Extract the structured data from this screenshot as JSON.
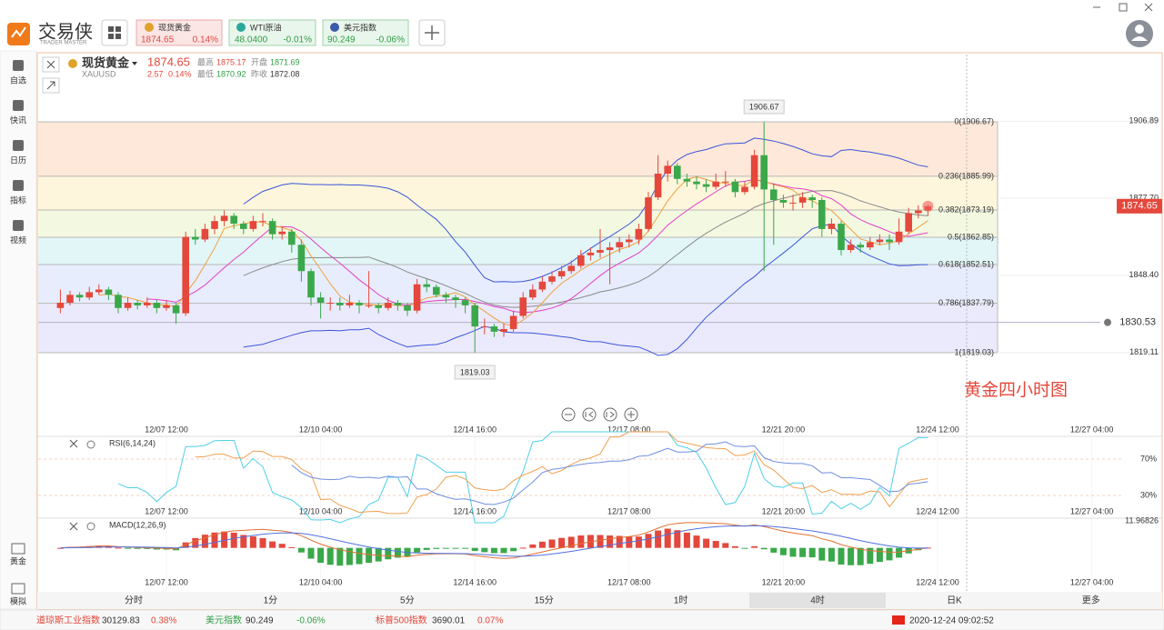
{
  "app": {
    "logo": "交易侠",
    "logo_sub": "TRADER MASTER"
  },
  "tabs": [
    {
      "name": "现货黄金",
      "price": "1874.65",
      "change": "0.14%"
    },
    {
      "name": "WTI原油",
      "price": "48.0400",
      "change": "-0.01%"
    },
    {
      "name": "美元指数",
      "price": "90.249",
      "change": "-0.06%"
    }
  ],
  "sidebar": [
    "自选",
    "快讯",
    "日历",
    "指标",
    "视频"
  ],
  "sidebar_bottom": [
    "黄金",
    "模拟"
  ],
  "quote": {
    "name": "现货黄金",
    "price": "1874.65",
    "symbol": "XAUUSD",
    "change": "2.57",
    "change_pct": "0.14%",
    "high_label": "最高",
    "high": "1875.17",
    "open_label": "开盘",
    "open": "1871.69",
    "low_label": "最低",
    "low": "1870.92",
    "prev_label": "昨收",
    "prev": "1872.08"
  },
  "chart_data": {
    "type": "candlestick",
    "categories": [
      null,
      null,
      null,
      null,
      null,
      null,
      null,
      null,
      null,
      null,
      null,
      "12/07 12:00",
      null,
      null,
      null,
      null,
      null,
      null,
      null,
      null,
      null,
      null,
      null,
      null,
      null,
      null,
      null,
      "12/10 04:00",
      null,
      null,
      null,
      null,
      null,
      null,
      null,
      null,
      null,
      null,
      null,
      null,
      null,
      null,
      null,
      "12/14 16:00",
      null,
      null,
      null,
      null,
      null,
      null,
      null,
      null,
      null,
      null,
      null,
      null,
      null,
      null,
      null,
      "12/17 08:00",
      null,
      null,
      null,
      null,
      null,
      null,
      null,
      null,
      null,
      null,
      null,
      null,
      null,
      null,
      null,
      "12/21 20:00",
      null,
      null,
      null,
      null,
      null,
      null,
      null,
      null,
      null,
      null,
      null,
      null,
      null,
      null,
      null,
      "12/24 12:00",
      null,
      null,
      null,
      null,
      null,
      null,
      null,
      null,
      null,
      null,
      null,
      null,
      null,
      null,
      null,
      "12/27 04:00"
    ],
    "candles": [
      [
        1836,
        1843,
        1834,
        1838
      ],
      [
        1838,
        1842.5,
        1837,
        1841
      ],
      [
        1841,
        1842,
        1838.5,
        1840
      ],
      [
        1840,
        1844,
        1839,
        1842
      ],
      [
        1842,
        1845,
        1841,
        1843
      ],
      [
        1843,
        1844,
        1839,
        1841
      ],
      [
        1841,
        1842,
        1834,
        1836
      ],
      [
        1836,
        1840,
        1835,
        1838
      ],
      [
        1838,
        1839,
        1835.5,
        1837
      ],
      [
        1837,
        1840,
        1836,
        1838
      ],
      [
        1838,
        1839,
        1834,
        1836
      ],
      [
        1836,
        1839,
        1835,
        1837
      ],
      [
        1837,
        1838,
        1830,
        1834
      ],
      [
        1834,
        1865,
        1833,
        1863
      ],
      [
        1863,
        1866,
        1860,
        1862
      ],
      [
        1862,
        1868,
        1861,
        1866
      ],
      [
        1866,
        1871,
        1864,
        1869
      ],
      [
        1869,
        1873,
        1867,
        1871
      ],
      [
        1871,
        1872,
        1866,
        1868
      ],
      [
        1868,
        1869,
        1864,
        1866
      ],
      [
        1866,
        1871,
        1865,
        1869
      ],
      [
        1869,
        1872,
        1867,
        1869
      ],
      [
        1869,
        1870,
        1862,
        1864
      ],
      [
        1864,
        1867,
        1862,
        1865
      ],
      [
        1865,
        1866,
        1857,
        1860
      ],
      [
        1860,
        1862,
        1846,
        1850
      ],
      [
        1850,
        1851,
        1837,
        1840
      ],
      [
        1840,
        1842,
        1832,
        1838
      ],
      [
        1838,
        1840,
        1835,
        1838
      ],
      [
        1838,
        1840,
        1835,
        1837
      ],
      [
        1837,
        1841,
        1836,
        1838
      ],
      [
        1838,
        1839,
        1834,
        1837
      ],
      [
        1837,
        1850,
        1836,
        1837
      ],
      [
        1837,
        1838,
        1834,
        1836
      ],
      [
        1836,
        1840,
        1835,
        1838
      ],
      [
        1838,
        1839,
        1835,
        1837
      ],
      [
        1837,
        1838,
        1833,
        1835
      ],
      [
        1835,
        1847,
        1834,
        1845
      ],
      [
        1845,
        1847,
        1842,
        1844
      ],
      [
        1844,
        1845,
        1840,
        1841
      ],
      [
        1841,
        1842,
        1838,
        1840
      ],
      [
        1840,
        1841,
        1836,
        1839
      ],
      [
        1839,
        1840,
        1834,
        1837
      ],
      [
        1837,
        1838,
        1819.03,
        1829
      ],
      [
        1829,
        1832,
        1826,
        1829
      ],
      [
        1829,
        1830,
        1825,
        1827
      ],
      [
        1827,
        1830,
        1825,
        1828
      ],
      [
        1828,
        1835,
        1827,
        1833
      ],
      [
        1833,
        1842,
        1832,
        1840
      ],
      [
        1840,
        1845,
        1839,
        1843
      ],
      [
        1843,
        1848,
        1842,
        1846
      ],
      [
        1846,
        1850,
        1845,
        1848
      ],
      [
        1848,
        1852,
        1847,
        1850
      ],
      [
        1850,
        1854,
        1849,
        1852
      ],
      [
        1852,
        1858,
        1851,
        1856
      ],
      [
        1856,
        1859,
        1854,
        1857
      ],
      [
        1857,
        1866,
        1855,
        1858
      ],
      [
        1858,
        1861,
        1845,
        1859
      ],
      [
        1859,
        1863,
        1857,
        1861
      ],
      [
        1861,
        1864,
        1859,
        1862
      ],
      [
        1862,
        1868,
        1860,
        1866
      ],
      [
        1866,
        1880,
        1865,
        1878
      ],
      [
        1878,
        1894,
        1877,
        1887
      ],
      [
        1887,
        1892,
        1884,
        1890
      ],
      [
        1890,
        1891,
        1883,
        1885
      ],
      [
        1885,
        1887,
        1882,
        1884
      ],
      [
        1884,
        1886,
        1881,
        1883
      ],
      [
        1883,
        1885,
        1880,
        1882
      ],
      [
        1882,
        1887,
        1881,
        1884
      ],
      [
        1884,
        1888,
        1882,
        1884
      ],
      [
        1884,
        1885,
        1878,
        1880
      ],
      [
        1880,
        1884,
        1879,
        1882
      ],
      [
        1882,
        1896,
        1881,
        1894
      ],
      [
        1894,
        1906.67,
        1850,
        1881
      ],
      [
        1881,
        1883,
        1860,
        1877
      ],
      [
        1877,
        1879,
        1874,
        1876
      ],
      [
        1876,
        1879,
        1873,
        1876
      ],
      [
        1876,
        1880,
        1874,
        1878
      ],
      [
        1878,
        1879,
        1874,
        1877
      ],
      [
        1877,
        1878,
        1863,
        1866
      ],
      [
        1866,
        1870,
        1864,
        1868
      ],
      [
        1868,
        1869,
        1856,
        1858
      ],
      [
        1858,
        1862,
        1857,
        1860
      ],
      [
        1860,
        1861,
        1857,
        1859
      ],
      [
        1859,
        1863,
        1858,
        1861
      ],
      [
        1861,
        1864,
        1860,
        1862
      ],
      [
        1862,
        1864,
        1858,
        1861
      ],
      [
        1861,
        1870,
        1860,
        1865
      ],
      [
        1865,
        1874,
        1864,
        1872
      ],
      [
        1872,
        1875,
        1870,
        1873
      ],
      [
        1873,
        1875.17,
        1870.92,
        1874.65
      ],
      null,
      null,
      null,
      null,
      null,
      null,
      null,
      null,
      null,
      null,
      null,
      null,
      null,
      null,
      null,
      null,
      null
    ],
    "ylim": [
      1792.45,
      1932.9
    ],
    "yticks": [
      1906.89,
      {
        "value": 1877.7,
        "label": "1877.70"
      },
      {
        "value": 1848.4,
        "label": "1848.40"
      },
      1819.11
    ],
    "fib_levels": [
      {
        "value": 1906.67,
        "label": "0(1906.67)"
      },
      {
        "value": 1885.99,
        "label": "0.236(1885.99)"
      },
      {
        "value": 1873.19,
        "label": "0.382(1873.19)"
      },
      {
        "value": 1862.85,
        "label": "0.5(1862.85)"
      },
      {
        "value": 1852.51,
        "label": "0.618(1852.51)"
      },
      {
        "value": 1837.79,
        "label": "0.786(1837.79)"
      },
      {
        "value": 1819.03,
        "label": "1(1819.03)"
      }
    ],
    "price_tag": 1874.65,
    "alert": 1830.53,
    "annotation": "黄金四小时图",
    "up_color": "#e4473b",
    "down_color": "#3aa84a"
  },
  "rsi": {
    "label": "RSI(6,14,24)",
    "ylim": [
      10,
      93
    ],
    "levels": [
      {
        "value": 70,
        "label": "70%"
      },
      {
        "value": 30,
        "label": "30%"
      }
    ]
  },
  "macd": {
    "label": "MACD(12,26,9)",
    "ylim": [
      -19.3,
      12.5
    ],
    "yticks": [
      11.96826
    ]
  },
  "timeframes": [
    "分时",
    "1分",
    "5分",
    "15分",
    "1时",
    "4时",
    "日K",
    "更多"
  ],
  "selected_timeframe": "4时",
  "ticker": [
    {
      "name": "道琼斯工业指数",
      "price": "30129.83",
      "change": "0.38%"
    },
    {
      "name": "美元指数",
      "price": "90.249",
      "change": "-0.06%"
    },
    {
      "name": "标普500指数",
      "price": "3690.01",
      "change": "0.07%"
    }
  ],
  "clock": "2020-12-24 09:02:52"
}
